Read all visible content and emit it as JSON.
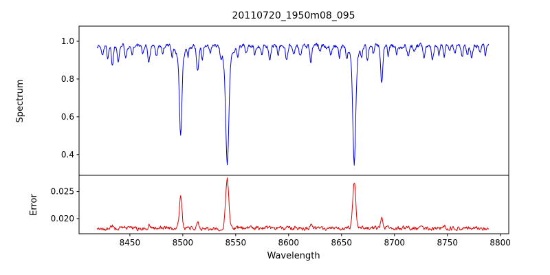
{
  "figure": {
    "background": "#ffffff"
  },
  "chart_data": {
    "type": "line",
    "title": "20110720_1950m08_095",
    "xlabel": "Wavelength",
    "x_start": 8419,
    "x_end": 8789,
    "x_step": 0.5,
    "xlim": [
      8402,
      8808
    ],
    "x_ticks": [
      8450,
      8500,
      8550,
      8600,
      8650,
      8700,
      8750,
      8800
    ],
    "x_tick_labels": [
      "8450",
      "8500",
      "8550",
      "8600",
      "8650",
      "8700",
      "8750",
      "8800"
    ],
    "noise_seed": 1337,
    "panels": [
      {
        "name": "spectrum",
        "ylabel": "Spectrum",
        "line_color": "#0000dd",
        "ylim": [
          0.29,
          1.08
        ],
        "y_ticks": [
          0.4,
          0.6,
          0.8,
          1.0
        ],
        "y_tick_labels": [
          "0.4",
          "0.6",
          "0.8",
          "1.0"
        ],
        "continuum": 0.975,
        "noise_amp": 0.012,
        "absorption_lines": [
          [
            8424,
            0.05,
            0.9
          ],
          [
            8429,
            0.06,
            0.8
          ],
          [
            8433.5,
            0.1,
            0.9
          ],
          [
            8439,
            0.07,
            0.9
          ],
          [
            8446,
            0.05,
            0.8
          ],
          [
            8452,
            0.04,
            0.8
          ],
          [
            8462,
            0.05,
            0.8
          ],
          [
            8468,
            0.09,
            0.9
          ],
          [
            8475,
            0.05,
            0.8
          ],
          [
            8481,
            0.04,
            0.8
          ],
          [
            8490,
            0.05,
            0.8
          ],
          [
            8498,
            0.38,
            1.1
          ],
          [
            8498,
            0.09,
            3.0
          ],
          [
            8505,
            0.05,
            0.8
          ],
          [
            8514,
            0.13,
            1.0
          ],
          [
            8518.5,
            0.07,
            0.9
          ],
          [
            8526,
            0.05,
            0.8
          ],
          [
            8536,
            0.05,
            0.8
          ],
          [
            8542,
            0.52,
            1.4
          ],
          [
            8542,
            0.11,
            3.5
          ],
          [
            8552,
            0.05,
            0.8
          ],
          [
            8560,
            0.04,
            0.8
          ],
          [
            8568,
            0.05,
            0.8
          ],
          [
            8575,
            0.05,
            0.8
          ],
          [
            8582,
            0.07,
            0.9
          ],
          [
            8590,
            0.04,
            0.8
          ],
          [
            8598,
            0.07,
            0.9
          ],
          [
            8605,
            0.04,
            0.8
          ],
          [
            8611,
            0.06,
            0.9
          ],
          [
            8621,
            0.09,
            0.9
          ],
          [
            8630,
            0.04,
            0.8
          ],
          [
            8640,
            0.04,
            0.8
          ],
          [
            8648,
            0.07,
            0.9
          ],
          [
            8655,
            0.05,
            0.8
          ],
          [
            8662,
            0.52,
            1.3
          ],
          [
            8662,
            0.1,
            3.2
          ],
          [
            8669,
            0.05,
            0.8
          ],
          [
            8674.5,
            0.07,
            0.9
          ],
          [
            8680,
            0.04,
            0.8
          ],
          [
            8688,
            0.2,
            1.0
          ],
          [
            8694,
            0.05,
            0.8
          ],
          [
            8702,
            0.04,
            0.8
          ],
          [
            8713,
            0.06,
            0.9
          ],
          [
            8719,
            0.04,
            0.8
          ],
          [
            8728,
            0.05,
            0.8
          ],
          [
            8736,
            0.06,
            0.9
          ],
          [
            8742,
            0.04,
            0.8
          ],
          [
            8747,
            0.06,
            0.9
          ],
          [
            8752,
            0.04,
            0.8
          ],
          [
            8757,
            0.05,
            0.8
          ],
          [
            8764,
            0.05,
            0.8
          ],
          [
            8769,
            0.04,
            0.8
          ],
          [
            8773,
            0.06,
            0.9
          ],
          [
            8781,
            0.04,
            0.8
          ],
          [
            8786,
            0.05,
            0.8
          ]
        ]
      },
      {
        "name": "error",
        "ylabel": "Error",
        "line_color": "#dd0000",
        "ylim": [
          0.0172,
          0.028
        ],
        "y_ticks": [
          0.02,
          0.025
        ],
        "y_tick_labels": [
          "0.020",
          "0.025"
        ],
        "baseline": 0.0182,
        "noise_amp": 0.00032,
        "error_peaks": [
          [
            8433,
            0.0006,
            0.9
          ],
          [
            8468,
            0.0005,
            0.9
          ],
          [
            8498,
            0.0056,
            1.2
          ],
          [
            8514,
            0.0012,
            0.9
          ],
          [
            8542,
            0.009,
            1.5
          ],
          [
            8582,
            0.0004,
            0.9
          ],
          [
            8621,
            0.0005,
            0.9
          ],
          [
            8662,
            0.0086,
            1.4
          ],
          [
            8688,
            0.0023,
            0.9
          ],
          [
            8713,
            0.0004,
            0.9
          ],
          [
            8747,
            0.0004,
            0.9
          ]
        ]
      }
    ]
  }
}
